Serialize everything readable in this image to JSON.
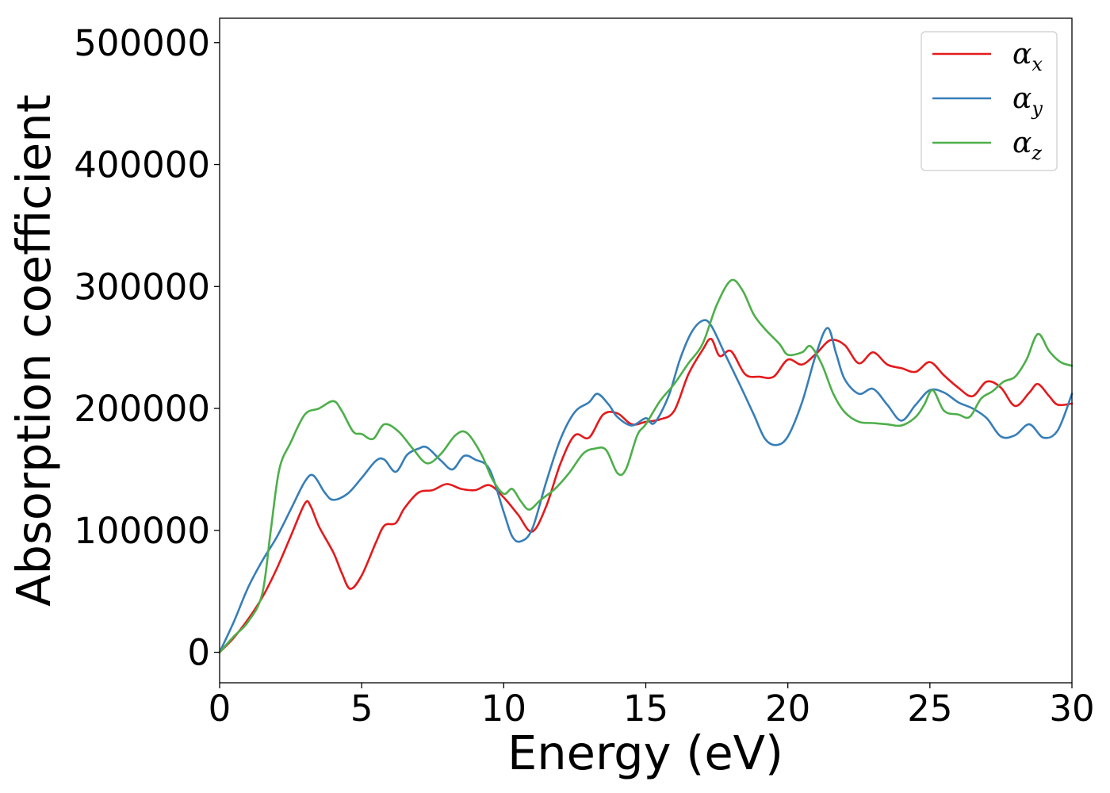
{
  "chart_data": {
    "type": "line",
    "title": "",
    "xlabel": "Energy (eV)",
    "ylabel": "Absorption coefficient",
    "xlim": [
      0,
      30
    ],
    "ylim": [
      -25000,
      520000
    ],
    "xticks": [
      0,
      5,
      10,
      15,
      20,
      25,
      30
    ],
    "yticks": [
      0,
      100000,
      200000,
      300000,
      400000,
      500000
    ],
    "grid": false,
    "legend_position": "top-right",
    "series": [
      {
        "name": "α_x",
        "symbol": "α",
        "subscript": "x",
        "color": "#e41a1c",
        "points": [
          [
            0,
            0
          ],
          [
            0.5,
            12000
          ],
          [
            1,
            27000
          ],
          [
            1.5,
            45000
          ],
          [
            2,
            68000
          ],
          [
            2.5,
            95000
          ],
          [
            3,
            122000
          ],
          [
            3.2,
            120000
          ],
          [
            3.5,
            103000
          ],
          [
            4,
            82000
          ],
          [
            4.3,
            65000
          ],
          [
            4.6,
            52000
          ],
          [
            5,
            63000
          ],
          [
            5.5,
            90000
          ],
          [
            5.8,
            104000
          ],
          [
            6.2,
            106000
          ],
          [
            6.5,
            118000
          ],
          [
            7,
            131000
          ],
          [
            7.5,
            133000
          ],
          [
            8,
            138000
          ],
          [
            8.5,
            134000
          ],
          [
            9,
            133000
          ],
          [
            9.5,
            137000
          ],
          [
            10,
            127000
          ],
          [
            10.5,
            113000
          ],
          [
            11,
            99000
          ],
          [
            11.5,
            120000
          ],
          [
            12,
            155000
          ],
          [
            12.5,
            178000
          ],
          [
            13,
            176000
          ],
          [
            13.5,
            195000
          ],
          [
            14,
            196000
          ],
          [
            14.5,
            187000
          ],
          [
            15,
            189000
          ],
          [
            15.5,
            191000
          ],
          [
            16,
            198000
          ],
          [
            16.5,
            228000
          ],
          [
            17,
            248000
          ],
          [
            17.3,
            257000
          ],
          [
            17.6,
            243000
          ],
          [
            18,
            247000
          ],
          [
            18.5,
            228000
          ],
          [
            19,
            226000
          ],
          [
            19.5,
            226000
          ],
          [
            20,
            240000
          ],
          [
            20.5,
            236000
          ],
          [
            21,
            245000
          ],
          [
            21.5,
            256000
          ],
          [
            22,
            252000
          ],
          [
            22.5,
            237000
          ],
          [
            23,
            246000
          ],
          [
            23.5,
            236000
          ],
          [
            24,
            233000
          ],
          [
            24.5,
            230000
          ],
          [
            25,
            238000
          ],
          [
            25.5,
            227000
          ],
          [
            26,
            217000
          ],
          [
            26.5,
            210000
          ],
          [
            27,
            222000
          ],
          [
            27.5,
            217000
          ],
          [
            28,
            202000
          ],
          [
            28.5,
            213000
          ],
          [
            28.8,
            220000
          ],
          [
            29.2,
            210000
          ],
          [
            29.5,
            203000
          ],
          [
            30,
            204000
          ]
        ]
      },
      {
        "name": "α_y",
        "symbol": "α",
        "subscript": "y",
        "color": "#377eb8",
        "points": [
          [
            0,
            0
          ],
          [
            0.5,
            25000
          ],
          [
            1,
            53000
          ],
          [
            1.5,
            75000
          ],
          [
            2,
            94000
          ],
          [
            2.5,
            117000
          ],
          [
            3,
            140000
          ],
          [
            3.3,
            145000
          ],
          [
            3.7,
            131000
          ],
          [
            4,
            125000
          ],
          [
            4.5,
            130000
          ],
          [
            5,
            143000
          ],
          [
            5.5,
            157000
          ],
          [
            5.8,
            158000
          ],
          [
            6.2,
            148000
          ],
          [
            6.6,
            162000
          ],
          [
            7,
            167000
          ],
          [
            7.3,
            168000
          ],
          [
            7.8,
            157000
          ],
          [
            8.2,
            150000
          ],
          [
            8.6,
            161000
          ],
          [
            9,
            158000
          ],
          [
            9.5,
            150000
          ],
          [
            10,
            115000
          ],
          [
            10.3,
            95000
          ],
          [
            10.6,
            91000
          ],
          [
            11,
            101000
          ],
          [
            11.5,
            140000
          ],
          [
            12,
            175000
          ],
          [
            12.5,
            197000
          ],
          [
            13,
            205000
          ],
          [
            13.3,
            212000
          ],
          [
            13.7,
            203000
          ],
          [
            14,
            193000
          ],
          [
            14.5,
            186000
          ],
          [
            15,
            192000
          ],
          [
            15.3,
            188000
          ],
          [
            15.8,
            210000
          ],
          [
            16.2,
            240000
          ],
          [
            16.6,
            262000
          ],
          [
            17,
            272000
          ],
          [
            17.3,
            268000
          ],
          [
            17.8,
            244000
          ],
          [
            18.3,
            220000
          ],
          [
            18.8,
            195000
          ],
          [
            19.2,
            175000
          ],
          [
            19.6,
            170000
          ],
          [
            20,
            177000
          ],
          [
            20.5,
            205000
          ],
          [
            21,
            245000
          ],
          [
            21.4,
            266000
          ],
          [
            21.7,
            245000
          ],
          [
            22,
            224000
          ],
          [
            22.5,
            212000
          ],
          [
            23,
            216000
          ],
          [
            23.5,
            203000
          ],
          [
            24,
            190000
          ],
          [
            24.5,
            203000
          ],
          [
            25,
            215000
          ],
          [
            25.5,
            213000
          ],
          [
            26,
            205000
          ],
          [
            26.5,
            200000
          ],
          [
            27,
            192000
          ],
          [
            27.5,
            177000
          ],
          [
            28,
            178000
          ],
          [
            28.5,
            187000
          ],
          [
            29,
            176000
          ],
          [
            29.5,
            182000
          ],
          [
            30,
            212000
          ]
        ]
      },
      {
        "name": "α_z",
        "symbol": "α",
        "subscript": "z",
        "color": "#4daf4a",
        "points": [
          [
            0,
            0
          ],
          [
            0.5,
            13000
          ],
          [
            1,
            25000
          ],
          [
            1.5,
            48000
          ],
          [
            1.8,
            100000
          ],
          [
            2.1,
            150000
          ],
          [
            2.5,
            172000
          ],
          [
            3,
            195000
          ],
          [
            3.5,
            200000
          ],
          [
            4,
            206000
          ],
          [
            4.3,
            198000
          ],
          [
            4.7,
            181000
          ],
          [
            5,
            179000
          ],
          [
            5.4,
            175000
          ],
          [
            5.8,
            187000
          ],
          [
            6.3,
            181000
          ],
          [
            6.8,
            167000
          ],
          [
            7.3,
            155000
          ],
          [
            7.8,
            163000
          ],
          [
            8.3,
            178000
          ],
          [
            8.7,
            180000
          ],
          [
            9.2,
            163000
          ],
          [
            9.6,
            142000
          ],
          [
            10,
            130000
          ],
          [
            10.3,
            134000
          ],
          [
            10.6,
            124000
          ],
          [
            10.9,
            117000
          ],
          [
            11.3,
            125000
          ],
          [
            11.8,
            134000
          ],
          [
            12.3,
            147000
          ],
          [
            12.8,
            163000
          ],
          [
            13.2,
            167000
          ],
          [
            13.6,
            166000
          ],
          [
            14,
            147000
          ],
          [
            14.3,
            150000
          ],
          [
            14.7,
            178000
          ],
          [
            15,
            187000
          ],
          [
            15.5,
            206000
          ],
          [
            16,
            220000
          ],
          [
            16.5,
            237000
          ],
          [
            17,
            253000
          ],
          [
            17.5,
            285000
          ],
          [
            18,
            305000
          ],
          [
            18.4,
            297000
          ],
          [
            18.8,
            277000
          ],
          [
            19.2,
            265000
          ],
          [
            19.7,
            253000
          ],
          [
            20,
            244000
          ],
          [
            20.5,
            246000
          ],
          [
            20.8,
            251000
          ],
          [
            21.2,
            236000
          ],
          [
            21.6,
            212000
          ],
          [
            22,
            197000
          ],
          [
            22.5,
            189000
          ],
          [
            23,
            188000
          ],
          [
            23.5,
            187000
          ],
          [
            24,
            186000
          ],
          [
            24.5,
            193000
          ],
          [
            24.8,
            203000
          ],
          [
            25.1,
            215000
          ],
          [
            25.5,
            198000
          ],
          [
            26,
            195000
          ],
          [
            26.4,
            193000
          ],
          [
            26.8,
            208000
          ],
          [
            27.2,
            214000
          ],
          [
            27.6,
            222000
          ],
          [
            28,
            226000
          ],
          [
            28.4,
            240000
          ],
          [
            28.8,
            261000
          ],
          [
            29.2,
            247000
          ],
          [
            29.6,
            238000
          ],
          [
            30,
            235000
          ]
        ]
      }
    ]
  }
}
